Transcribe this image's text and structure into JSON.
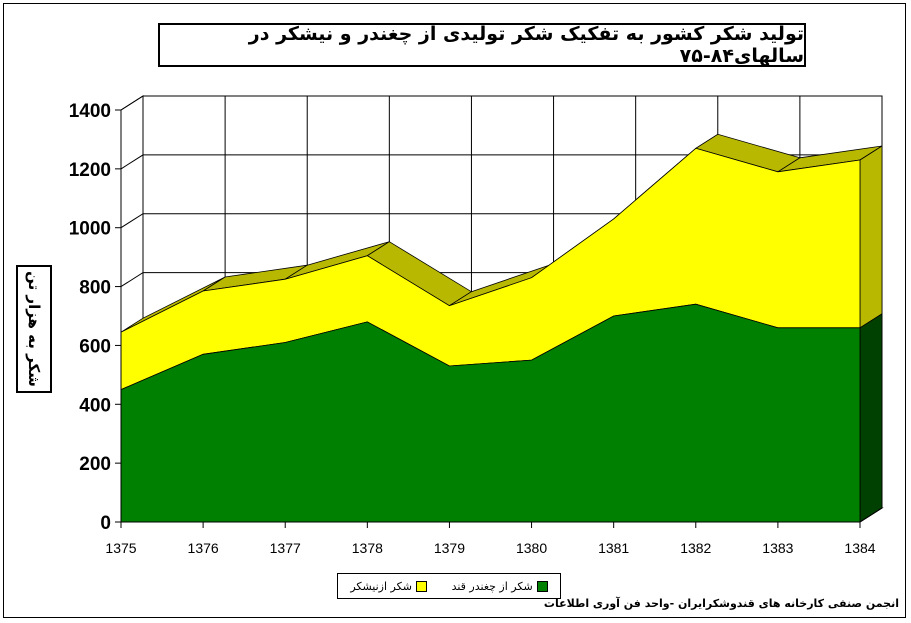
{
  "chart_data": {
    "type": "area",
    "stacked": true,
    "three_d": true,
    "title": "تولید شکر کشور به تفکیک شکر تولیدی از چغندر و نیشکر در سالهای۸۴-۷۵",
    "ylabel": "شکر به هزار تن",
    "xlabel": "",
    "categories": [
      "1375",
      "1376",
      "1377",
      "1378",
      "1379",
      "1380",
      "1381",
      "1382",
      "1383",
      "1384"
    ],
    "ylim": [
      0,
      1400
    ],
    "yticks": [
      0,
      200,
      400,
      600,
      800,
      1000,
      1200,
      1400
    ],
    "grid": true,
    "legend_position": "bottom",
    "series": [
      {
        "name": "شکر از چغندر قند",
        "color": "#008000",
        "values": [
          450,
          570,
          610,
          680,
          530,
          550,
          700,
          740,
          660,
          660
        ]
      },
      {
        "name": "شکر ازنیشکر",
        "color": "#ffff00",
        "values": [
          195,
          215,
          215,
          225,
          205,
          280,
          330,
          530,
          530,
          570
        ]
      }
    ]
  },
  "source_note": "انجمن صنفی کارخانه های قندوشکرایران -واحد فن آوری اطلاعات",
  "colors": {
    "background": "#ffffff",
    "grid": "#000000",
    "beet": "#008000",
    "beet_side": "#004000",
    "cane": "#ffff00",
    "cane_side": "#b8b800",
    "floor": "#c0ffff"
  }
}
